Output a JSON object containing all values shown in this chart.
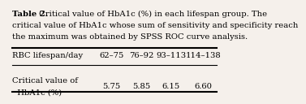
{
  "title_bold": "Table 2.",
  "title_line1_rest": " Critical value of HbA1c (%) in each lifespan group. The",
  "title_line2": "critical value of HbA1c whose sum of sensitivity and specificity reach",
  "title_line3": "the maximum was obtained by SPSS ROC curve analysis.",
  "col_headers": [
    "RBC lifespan/day",
    "62–75",
    "76–92",
    "93–113",
    "114–138"
  ],
  "row_label_line1": "Critical value of",
  "row_label_line2": "  HbA1c (%)",
  "row_values": [
    "5.75",
    "5.85",
    "6.15",
    "6.60"
  ],
  "bg_color": "#f5f0eb",
  "text_color": "#000000",
  "font_size": 7.2,
  "line_lw_thick": 1.5,
  "line_lw_thin": 0.8
}
